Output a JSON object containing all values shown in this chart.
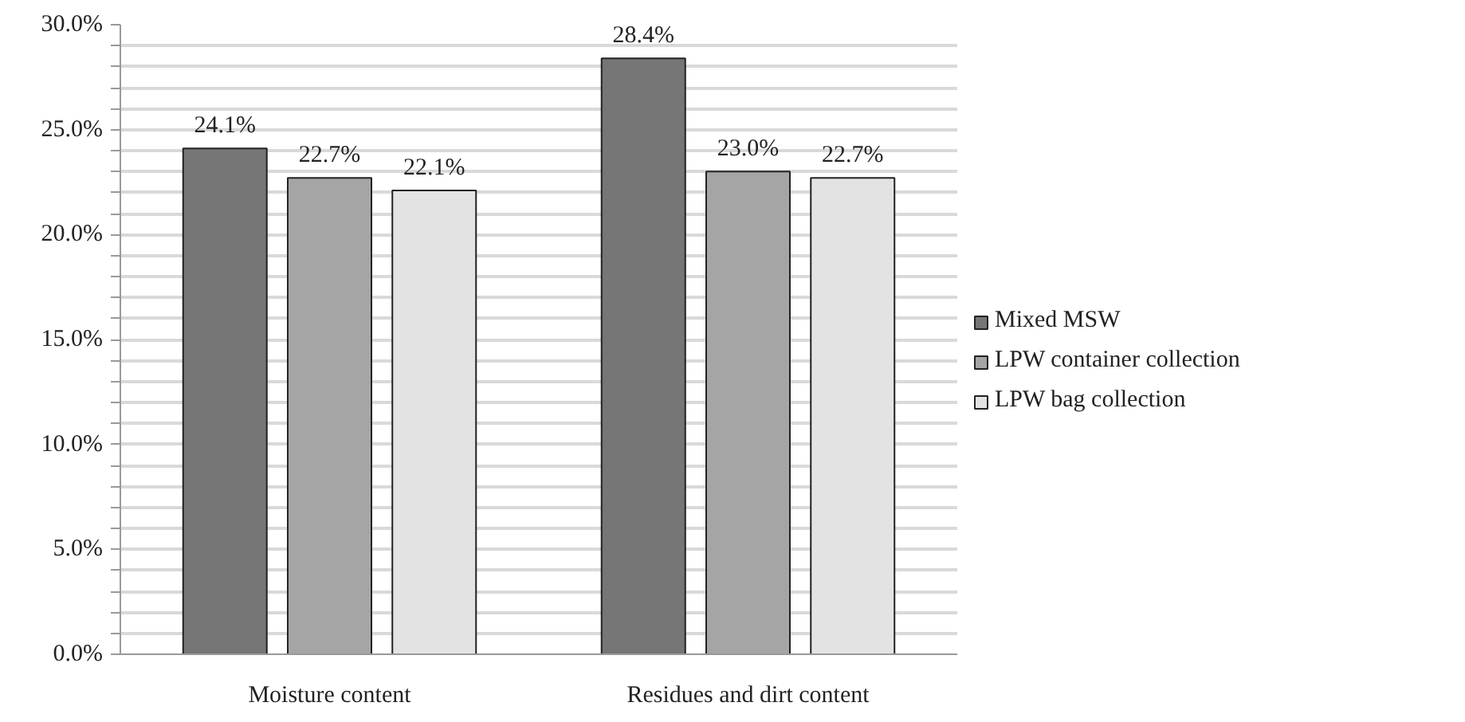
{
  "chart_data": {
    "type": "bar",
    "categories": [
      "Moisture content",
      "Residues and dirt content"
    ],
    "series": [
      {
        "name": "Mixed MSW",
        "color": "#767676",
        "values": [
          24.1,
          28.4
        ],
        "value_labels": [
          "24.1%",
          "28.4%"
        ]
      },
      {
        "name": "LPW container collection",
        "color": "#a5a5a5",
        "values": [
          22.7,
          23.0
        ],
        "value_labels": [
          "22.7%",
          "23.0%"
        ]
      },
      {
        "name": "LPW bag collection",
        "color": "#e3e3e3",
        "values": [
          22.1,
          22.7
        ],
        "value_labels": [
          "22.1%",
          "22.7%"
        ]
      }
    ],
    "ylim": [
      0,
      30
    ],
    "yticks": [
      {
        "value": 0,
        "label": "0.0%"
      },
      {
        "value": 1,
        "label": null
      },
      {
        "value": 2,
        "label": null
      },
      {
        "value": 3,
        "label": null
      },
      {
        "value": 4,
        "label": null
      },
      {
        "value": 5,
        "label": "5.0%"
      },
      {
        "value": 6,
        "label": null
      },
      {
        "value": 7,
        "label": null
      },
      {
        "value": 8,
        "label": null
      },
      {
        "value": 9,
        "label": null
      },
      {
        "value": 10,
        "label": "10.0%"
      },
      {
        "value": 11,
        "label": null
      },
      {
        "value": 12,
        "label": null
      },
      {
        "value": 13,
        "label": null
      },
      {
        "value": 14,
        "label": null
      },
      {
        "value": 15,
        "label": "15.0%"
      },
      {
        "value": 16,
        "label": null
      },
      {
        "value": 17,
        "label": null
      },
      {
        "value": 18,
        "label": null
      },
      {
        "value": 19,
        "label": null
      },
      {
        "value": 20,
        "label": "20.0%"
      },
      {
        "value": 21,
        "label": null
      },
      {
        "value": 22,
        "label": null
      },
      {
        "value": 23,
        "label": null
      },
      {
        "value": 24,
        "label": null
      },
      {
        "value": 25,
        "label": "25.0%"
      },
      {
        "value": 26,
        "label": null
      },
      {
        "value": 27,
        "label": null
      },
      {
        "value": 28,
        "label": null
      },
      {
        "value": 29,
        "label": null
      },
      {
        "value": 30,
        "label": "30.0%"
      }
    ],
    "grid": "y",
    "legend": "right"
  }
}
